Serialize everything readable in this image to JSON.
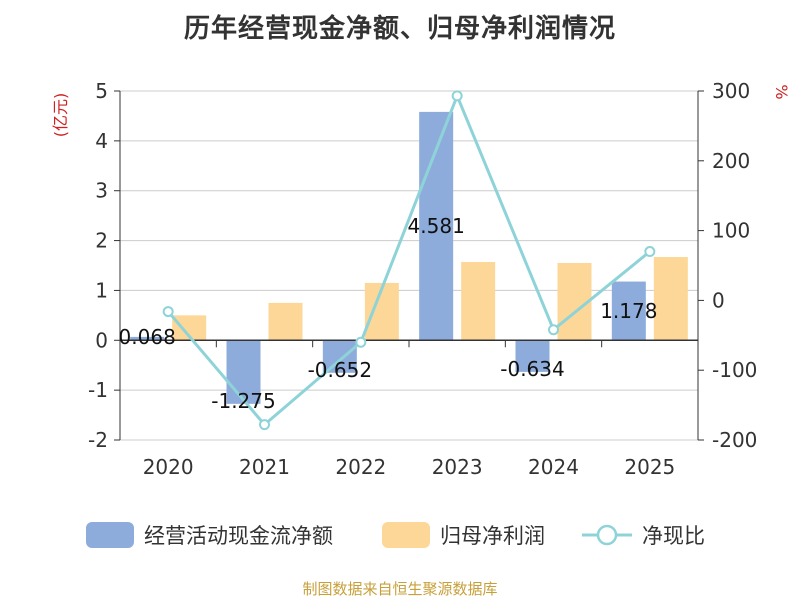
{
  "chart_data": {
    "type": "bar",
    "title": "历年经营现金净额、归母净利润情况",
    "categories": [
      "2020",
      "2021",
      "2022",
      "2023",
      "2024",
      "2025"
    ],
    "y_left": {
      "unit": "(亿元)",
      "range": [
        -2,
        5
      ],
      "ticks": [
        5,
        4,
        3,
        2,
        1,
        0,
        -1,
        -2
      ]
    },
    "y_right": {
      "unit": "%",
      "range": [
        -200,
        300
      ],
      "ticks": [
        300,
        200,
        100,
        0,
        -100,
        -200
      ]
    },
    "series": [
      {
        "name": "经营活动现金流净额",
        "type": "bar",
        "axis": "left",
        "color": "#8eacdb",
        "values": [
          0.068,
          -1.275,
          -0.652,
          4.581,
          -0.634,
          1.178
        ],
        "labels": [
          "0.068",
          "-1.275",
          "-0.652",
          "4.581",
          "-0.634",
          "1.178"
        ]
      },
      {
        "name": "归母净利润",
        "type": "bar",
        "axis": "left",
        "color": "#fdd797",
        "values": [
          0.5,
          0.75,
          1.15,
          1.57,
          1.55,
          1.67
        ]
      },
      {
        "name": "净现比",
        "type": "line",
        "axis": "right",
        "color": "#8ed3d8",
        "values": [
          -16,
          -178,
          -60,
          293,
          -42,
          70
        ]
      }
    ],
    "grid": true,
    "legend": "bottom"
  },
  "footer": "制图数据来自恒生聚源数据库"
}
